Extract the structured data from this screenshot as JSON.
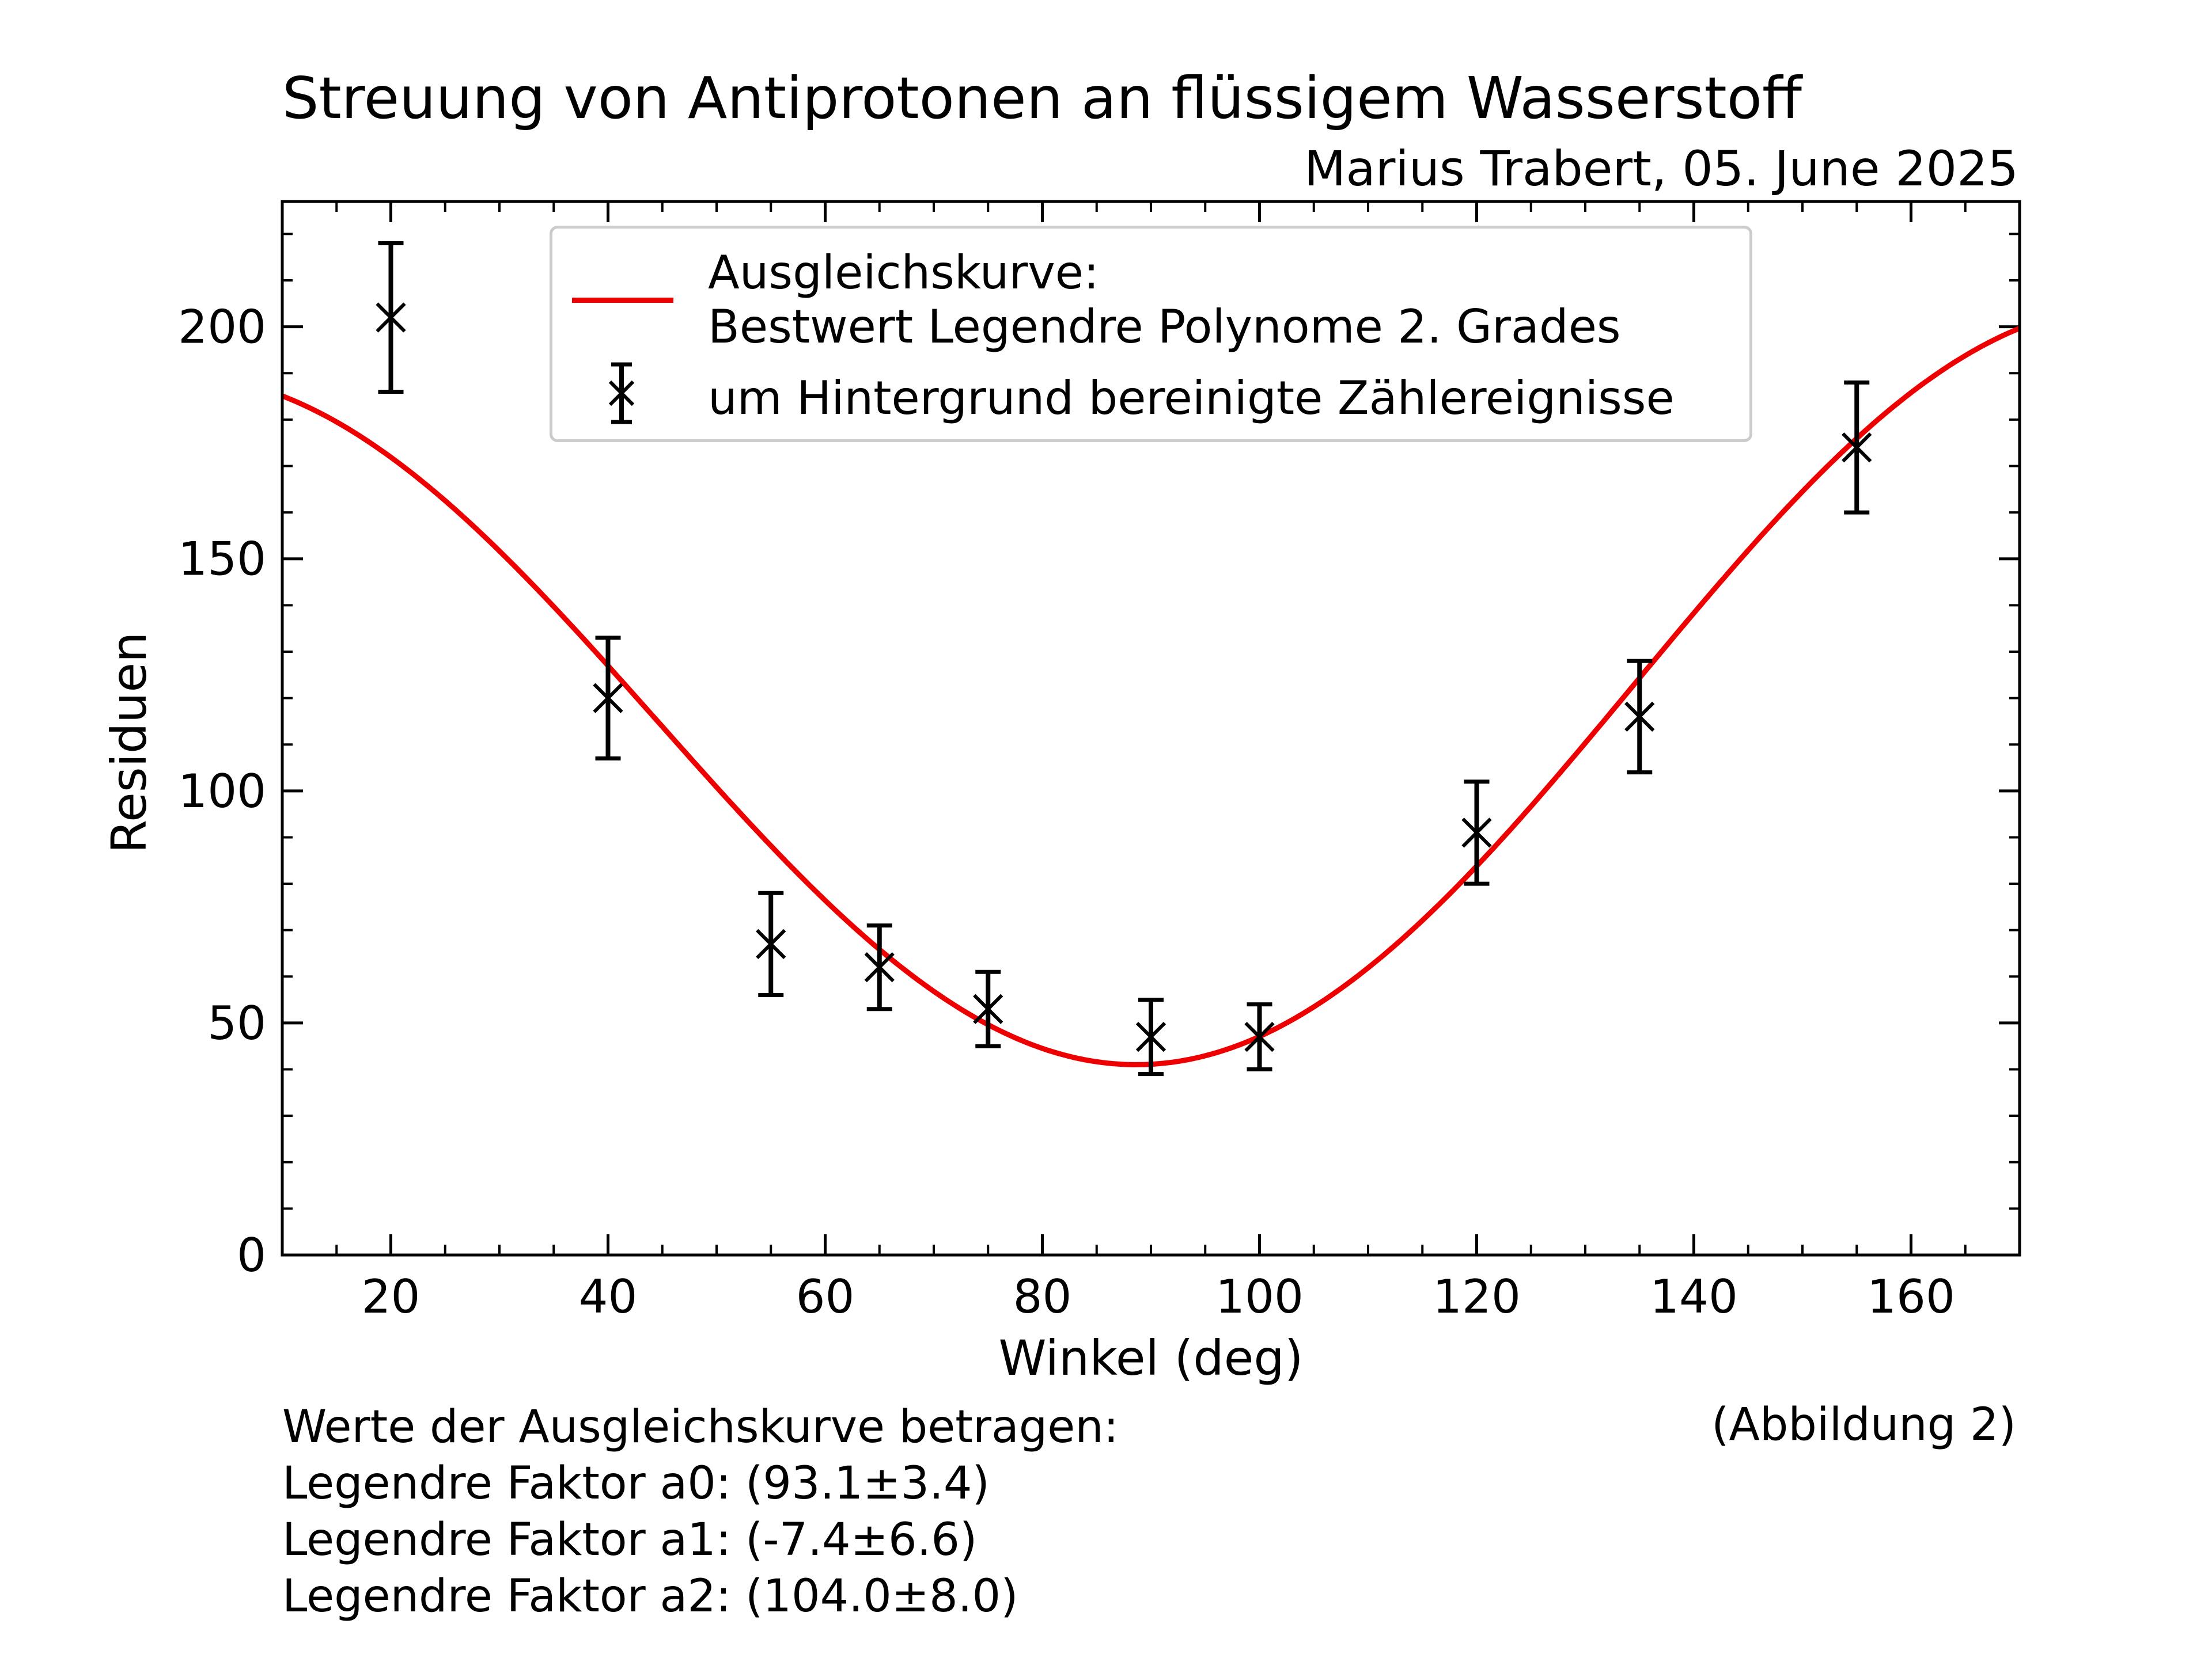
{
  "title": "Streuung von Antiprotonen an flüssigem Wasserstoff",
  "subtitle": "Marius Trabert, 05. June 2025",
  "figure_label": "(Abbildung 2)",
  "notes": [
    "Werte der Ausgleichskurve betragen:",
    "Legendre Faktor a0: (93.1±3.4)",
    "Legendre Faktor a1: (-7.4±6.6)",
    "Legendre Faktor a2: (104.0±8.0)"
  ],
  "colors": {
    "fit": "#ee0000",
    "data": "#000000"
  },
  "chart_data": {
    "type": "scatter",
    "xlabel": "Winkel (deg)",
    "ylabel": "Residuen",
    "xlim": [
      10,
      170
    ],
    "ylim": [
      0,
      227
    ],
    "xticks": [
      20,
      40,
      60,
      80,
      100,
      120,
      140,
      160
    ],
    "yticks": [
      0,
      50,
      100,
      150,
      200
    ],
    "grid": false,
    "legend_position": "top-center",
    "legend": [
      {
        "label_line1": "Ausgleichskurve:",
        "label_line2": "Bestwert Legendre Polynome 2. Grades",
        "style": "line",
        "color": "#ee0000"
      },
      {
        "label": "um Hintergrund bereinigte Zählereignisse",
        "style": "x-errorbar",
        "color": "#000000"
      }
    ],
    "fit_curve": {
      "model": "a0*P0(cos θ) + a1*P1(cos θ) + a2*P2(cos θ)",
      "a0": 93.1,
      "a1": -7.4,
      "a2": 104.0
    },
    "series": [
      {
        "name": "um Hintergrund bereinigte Zählereignisse",
        "x": [
          20,
          40,
          55,
          65,
          75,
          90,
          100,
          120,
          135,
          155
        ],
        "y": [
          202,
          120,
          67,
          62,
          53,
          47,
          47,
          91,
          116,
          174
        ],
        "yerr": [
          16,
          13,
          11,
          9,
          8,
          8,
          7,
          11,
          12,
          14
        ]
      }
    ]
  }
}
